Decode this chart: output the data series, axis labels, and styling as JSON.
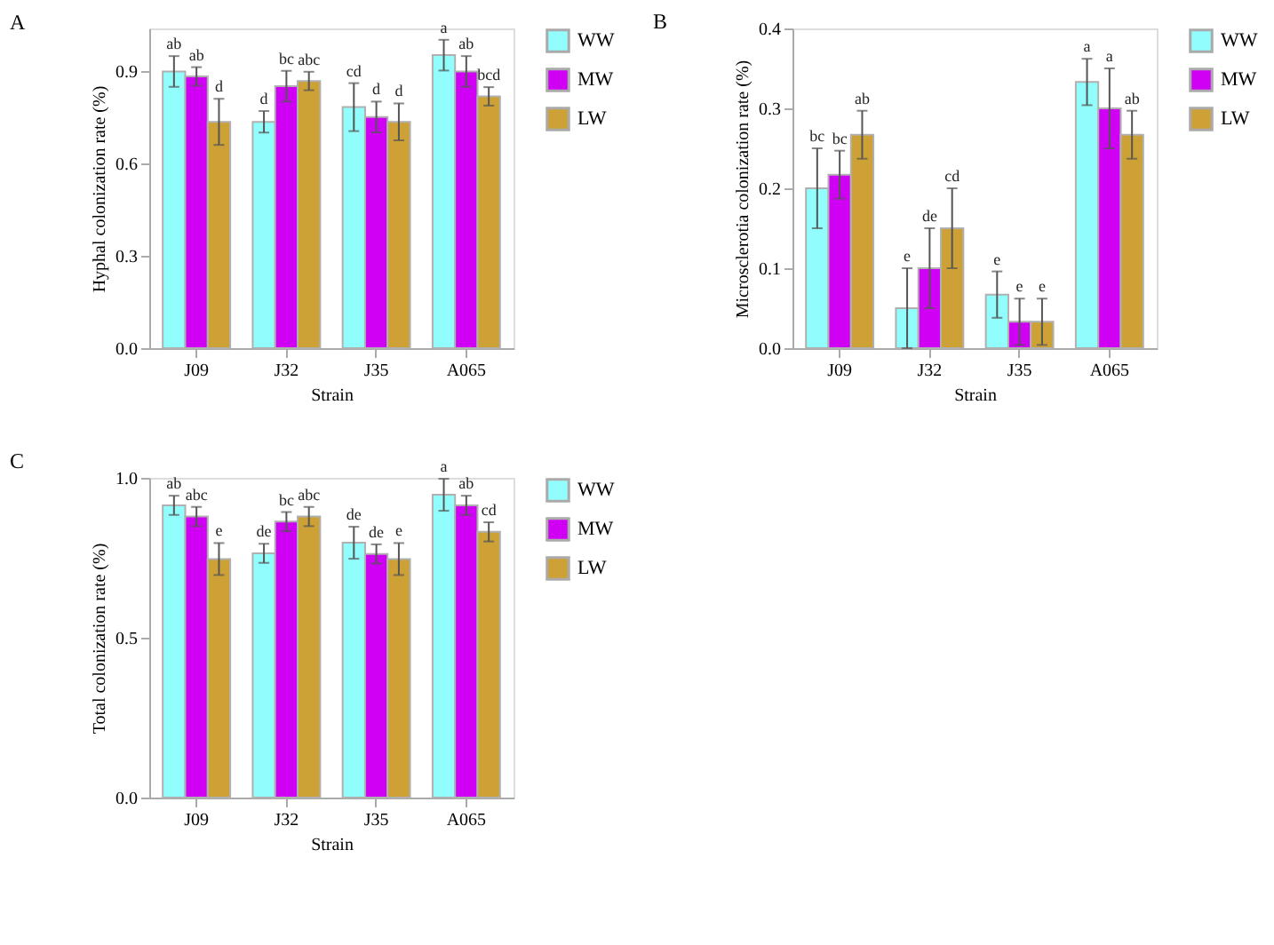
{
  "chart_data": [
    {
      "type": "bar",
      "title": "A",
      "xlabel": "Strain",
      "ylabel": "Hyphal colonization rate (%)",
      "categories": [
        "J09",
        "J32",
        "J35",
        "A065"
      ],
      "ylim": [
        0,
        1.04
      ],
      "yticks": [
        {
          "value": 0,
          "label": "0.0"
        },
        {
          "value": 0.3,
          "label": "0.3"
        },
        {
          "value": 0.6,
          "label": "0.6"
        },
        {
          "value": 0.9,
          "label": "0.9"
        }
      ],
      "legend": "top right",
      "grid": false,
      "series": [
        {
          "name": "WW",
          "color": "#91fdfc",
          "values": [
            0.9,
            0.736,
            0.784,
            0.953
          ],
          "errors": [
            0.05,
            0.035,
            0.078,
            0.05
          ],
          "value_labels": [
            "ab",
            "d",
            "cd",
            "a"
          ]
        },
        {
          "name": "MW",
          "color": "#d000f5",
          "values": [
            0.884,
            0.852,
            0.752,
            0.9
          ],
          "errors": [
            0.03,
            0.05,
            0.05,
            0.05
          ],
          "value_labels": [
            "ab",
            "bc",
            "d",
            "ab"
          ]
        },
        {
          "name": "LW",
          "color": "#cda135",
          "values": [
            0.736,
            0.869,
            0.736,
            0.819
          ],
          "errors": [
            0.075,
            0.03,
            0.06,
            0.03
          ],
          "value_labels": [
            "d",
            "abc",
            "d",
            "bcd"
          ]
        }
      ]
    },
    {
      "type": "bar",
      "title": "B",
      "xlabel": "Strain",
      "ylabel": "Microsclerotia colonization rate (%)",
      "categories": [
        "J09",
        "J32",
        "J35",
        "A065"
      ],
      "ylim": [
        0,
        0.4
      ],
      "yticks": [
        {
          "value": 0,
          "label": "0.0"
        },
        0.1,
        0.2,
        0.3,
        0.4
      ],
      "legend": "top right",
      "grid": false,
      "series": [
        {
          "name": "WW",
          "color": "#91fdfc",
          "values": [
            0.2,
            0.05,
            0.067,
            0.333
          ],
          "errors": [
            0.05,
            0.05,
            0.029,
            0.029
          ],
          "value_labels": [
            "bc",
            "e",
            "e",
            "a"
          ]
        },
        {
          "name": "MW",
          "color": "#d000f5",
          "values": [
            0.217,
            0.1,
            0.033,
            0.3
          ],
          "errors": [
            0.03,
            0.05,
            0.029,
            0.05
          ],
          "value_labels": [
            "bc",
            "de",
            "e",
            "a"
          ]
        },
        {
          "name": "LW",
          "color": "#cda135",
          "values": [
            0.267,
            0.15,
            0.033,
            0.267
          ],
          "errors": [
            0.03,
            0.05,
            0.029,
            0.03
          ],
          "value_labels": [
            "ab",
            "cd",
            "e",
            "ab"
          ]
        }
      ]
    },
    {
      "type": "bar",
      "title": "C",
      "xlabel": "Strain",
      "ylabel": "Total colonization rate (%)",
      "categories": [
        "J09",
        "J32",
        "J35",
        "A065"
      ],
      "ylim": [
        0,
        1.0
      ],
      "yticks": [
        {
          "value": 0,
          "label": "0.0"
        },
        0.5,
        {
          "value": 1,
          "label": "1.0"
        }
      ],
      "legend": "top right",
      "grid": false,
      "series": [
        {
          "name": "WW",
          "color": "#91fdfc",
          "values": [
            0.914,
            0.764,
            0.797,
            0.947
          ],
          "errors": [
            0.03,
            0.03,
            0.05,
            0.05
          ],
          "value_labels": [
            "ab",
            "de",
            "de",
            "a"
          ]
        },
        {
          "name": "MW",
          "color": "#d000f5",
          "values": [
            0.879,
            0.863,
            0.762,
            0.914
          ],
          "errors": [
            0.03,
            0.03,
            0.03,
            0.03
          ],
          "value_labels": [
            "abc",
            "bc",
            "de",
            "ab"
          ]
        },
        {
          "name": "LW",
          "color": "#cda135",
          "values": [
            0.746,
            0.879,
            0.746,
            0.831
          ],
          "errors": [
            0.05,
            0.03,
            0.05,
            0.03
          ],
          "value_labels": [
            "e",
            "abc",
            "e",
            "cd"
          ]
        }
      ]
    }
  ]
}
